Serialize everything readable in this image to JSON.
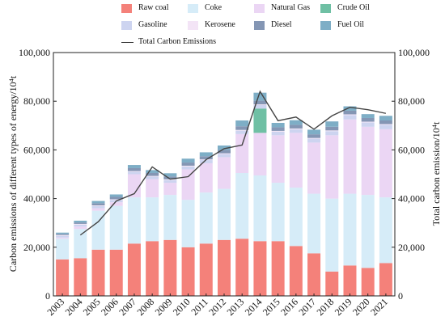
{
  "chart_data": {
    "type": "bar",
    "stacked": true,
    "categories": [
      "2003",
      "2004",
      "2005",
      "2006",
      "2007",
      "2008",
      "2009",
      "2010",
      "2011",
      "2012",
      "2013",
      "2014",
      "2015",
      "2016",
      "2017",
      "2018",
      "2019",
      "2020",
      "2021"
    ],
    "series": [
      {
        "name": "Raw coal",
        "color": "#f4817a",
        "values": [
          15000,
          15500,
          19000,
          19000,
          21500,
          22500,
          23000,
          20000,
          21500,
          23000,
          23500,
          22500,
          22500,
          20500,
          17500,
          10000,
          12500,
          11500,
          13500
        ]
      },
      {
        "name": "Coke",
        "color": "#d6ecf8",
        "values": [
          8500,
          12000,
          16000,
          18000,
          19000,
          18000,
          18500,
          19500,
          21000,
          21000,
          27000,
          27000,
          24000,
          24000,
          24500,
          30000,
          29500,
          30000,
          27000
        ]
      },
      {
        "name": "Natural Gas",
        "color": "#ebd6f4",
        "values": [
          500,
          1000,
          1000,
          1500,
          9500,
          7500,
          5000,
          12500,
          12000,
          13000,
          16000,
          17500,
          19500,
          22500,
          21000,
          26000,
          30500,
          28000,
          28000
        ]
      },
      {
        "name": "Crude Oil",
        "color": "#6fc0a4",
        "values": [
          0,
          0,
          0,
          0,
          0,
          0,
          0,
          0,
          0,
          0,
          0,
          10000,
          0,
          0,
          0,
          0,
          0,
          0,
          0
        ]
      },
      {
        "name": "Gasoline",
        "color": "#cdd4f0",
        "values": [
          700,
          800,
          900,
          900,
          1000,
          1000,
          1100,
          1200,
          1300,
          1300,
          1400,
          1400,
          1500,
          1500,
          1600,
          1700,
          1800,
          1800,
          1800
        ]
      },
      {
        "name": "Kerosene",
        "color": "#f3e4f6",
        "values": [
          300,
          300,
          300,
          300,
          300,
          300,
          300,
          300,
          300,
          300,
          300,
          300,
          300,
          300,
          300,
          300,
          300,
          300,
          300
        ]
      },
      {
        "name": "Diesel",
        "color": "#8496b4",
        "values": [
          500,
          600,
          900,
          1000,
          1200,
          1200,
          1200,
          1300,
          1300,
          1400,
          1500,
          1500,
          1500,
          1500,
          1500,
          1500,
          1500,
          1500,
          1500
        ]
      },
      {
        "name": "Fuel Oil",
        "color": "#7eaec6",
        "values": [
          500,
          700,
          900,
          1000,
          1300,
          1200,
          1300,
          1600,
          1600,
          1800,
          2400,
          3300,
          1800,
          1900,
          1900,
          2200,
          1800,
          1600,
          1900
        ]
      }
    ],
    "line": {
      "name": "Total Carbon Emissions",
      "color": "#444444",
      "values": [
        null,
        25000,
        30500,
        39000,
        42000,
        53000,
        48000,
        49000,
        56000,
        60500,
        62000,
        84000,
        72000,
        73500,
        68500,
        74000,
        77500,
        76500,
        75000
      ]
    },
    "ylabel_left": "Carbon emissions of different types of energy/10⁴t",
    "ylabel_right": "Total carbon emission/10⁴t",
    "ylim": [
      0,
      100000
    ],
    "yticks": [
      "0",
      "20,000",
      "40,000",
      "60,000",
      "80,000",
      "100,000"
    ],
    "grid": false,
    "legend_position": "top"
  }
}
